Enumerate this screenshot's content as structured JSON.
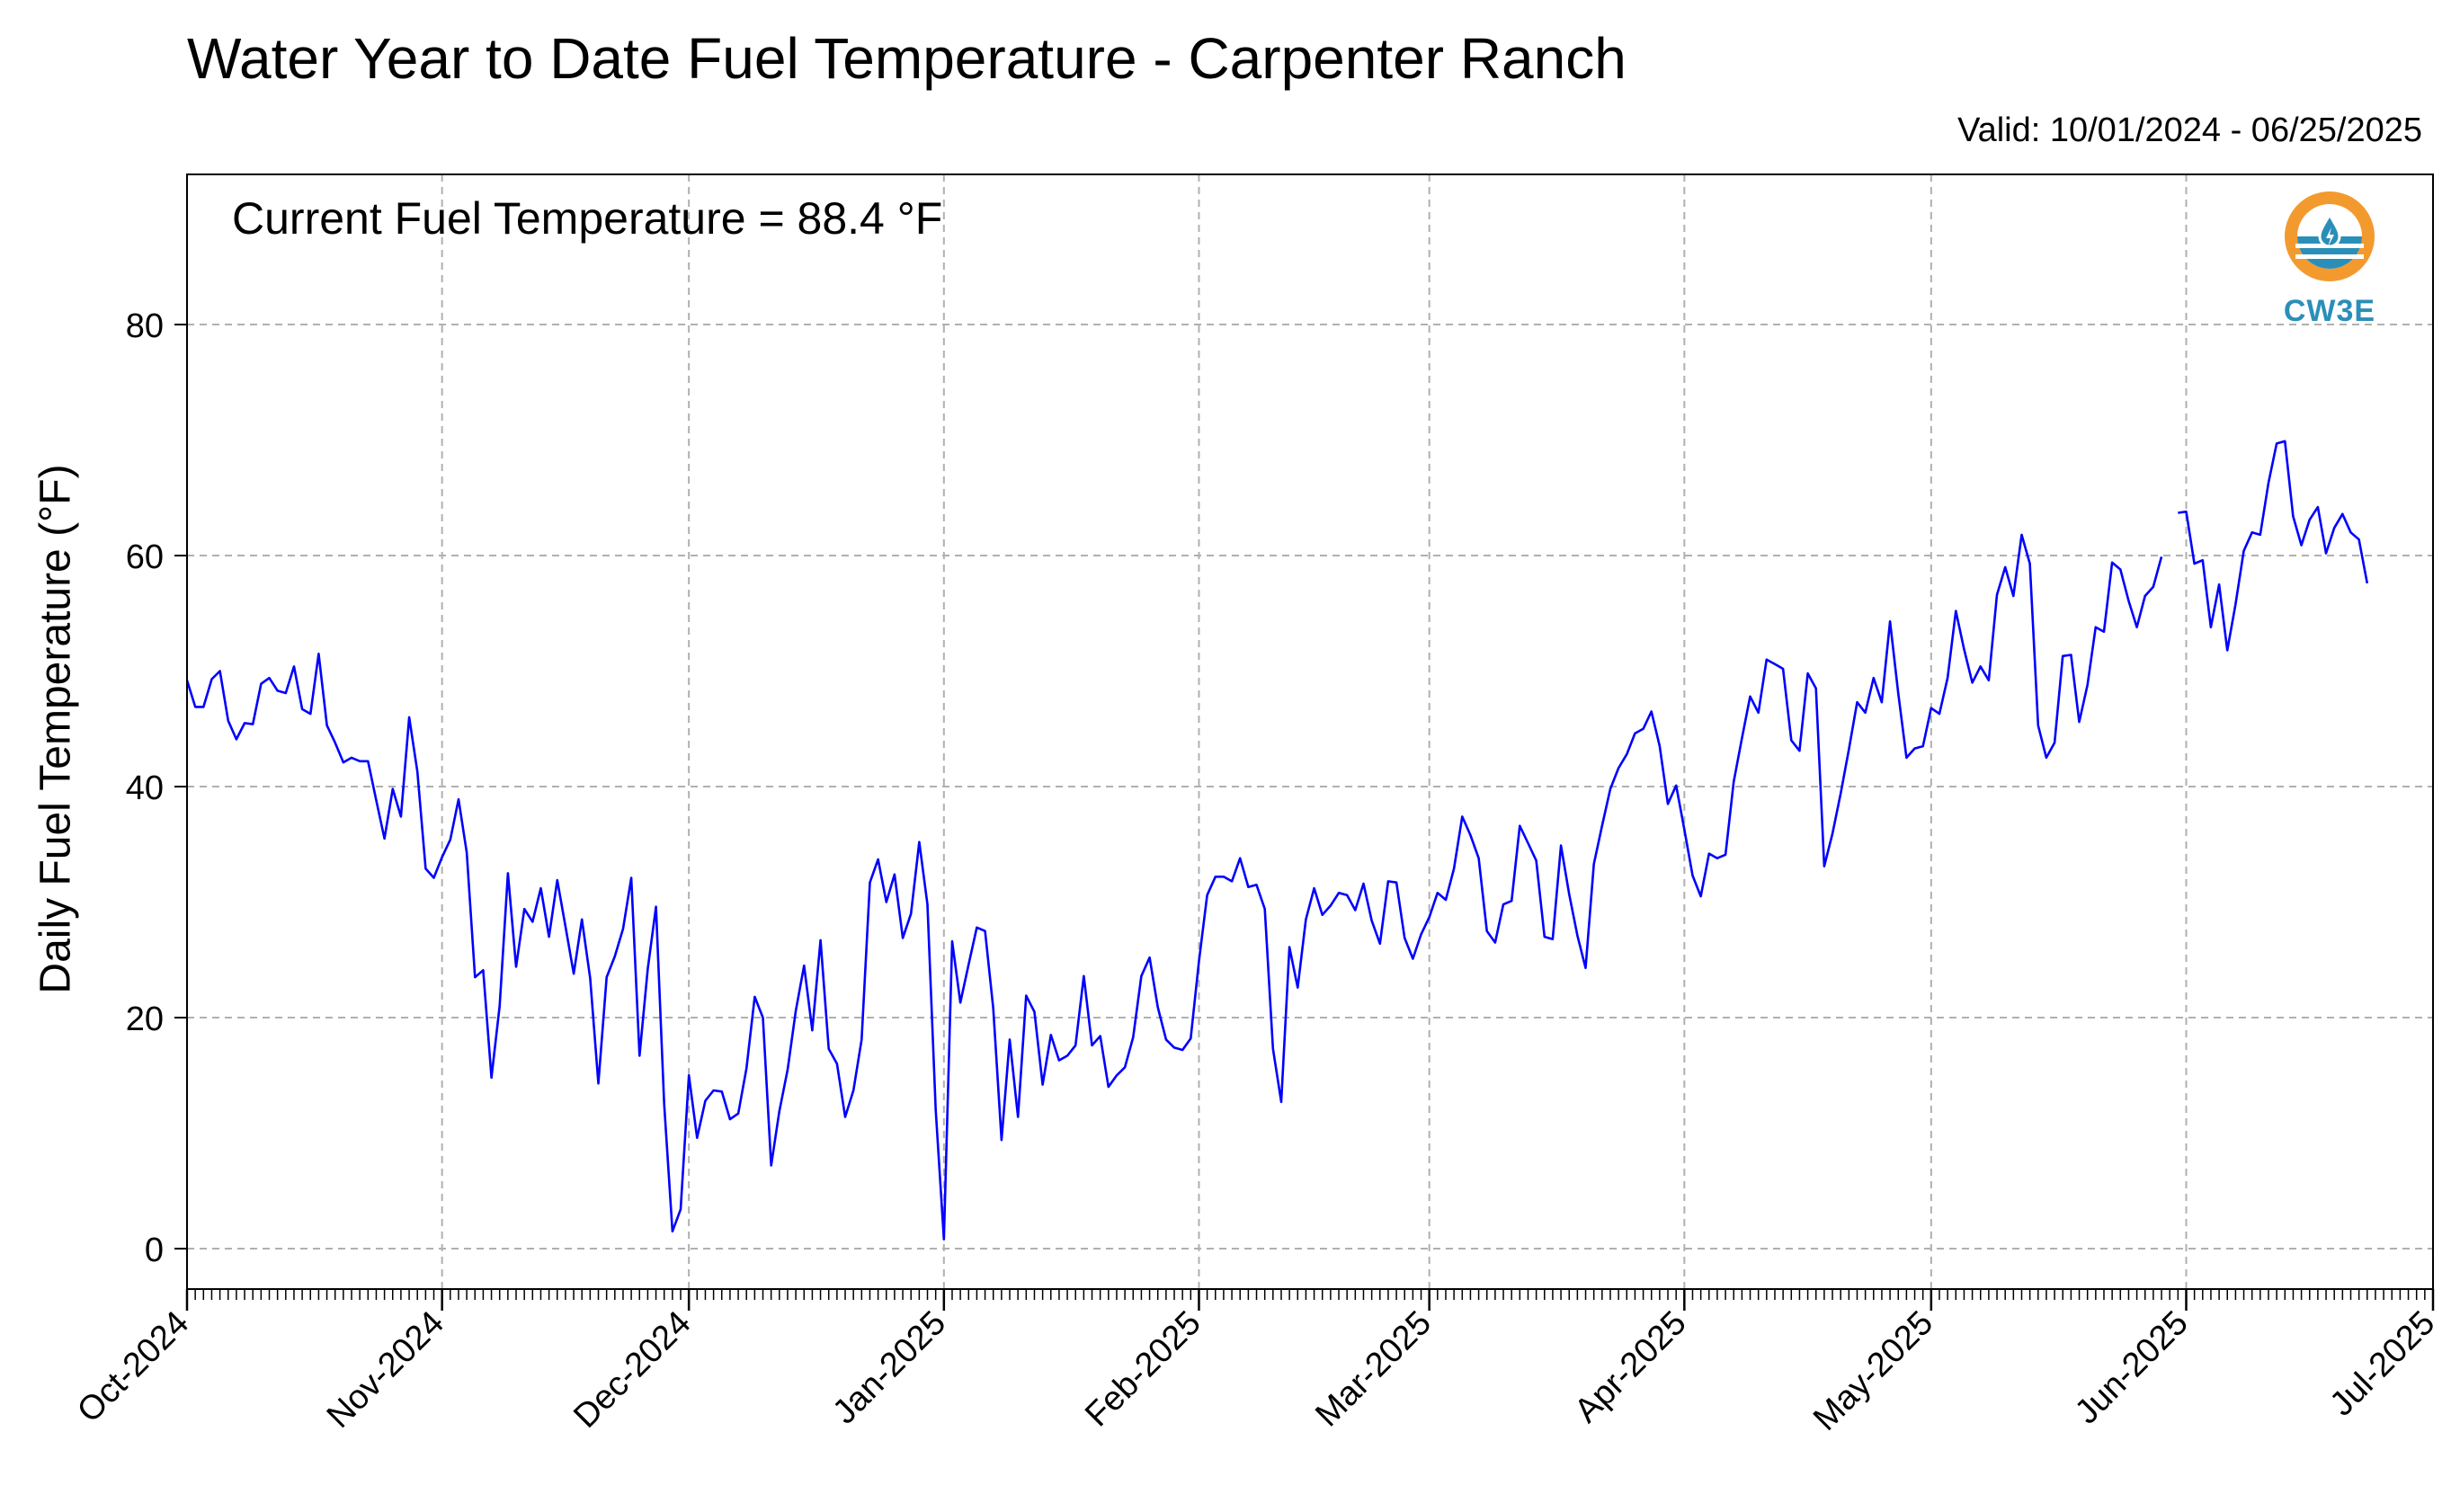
{
  "title": "Water Year to Date Fuel Temperature - Carpenter Ranch",
  "subtitle": "Valid: 10/01/2024 - 06/25/2025",
  "annotation": "Current Fuel Temperature = 88.4 $^\\circ$F",
  "logo": {
    "text": "CW3E",
    "icon": "cw3e-logo-icon",
    "colors": {
      "orange": "#f39a2e",
      "blue": "#2a8fb8"
    }
  },
  "chart_data": {
    "type": "line",
    "title": "Water Year to Date Fuel Temperature - Carpenter Ranch",
    "xlabel": "",
    "ylabel": "Daily Fuel Temperature ($^\\circ$F)",
    "xlim": [
      "2024-10-01",
      "2025-07-01"
    ],
    "ylim": [
      -3.5,
      93
    ],
    "yticks": [
      0,
      20,
      40,
      60,
      80
    ],
    "ytick_labels": [
      "0",
      "20",
      "40",
      "60",
      "80"
    ],
    "xticks": [
      "2024-10-01",
      "2024-11-01",
      "2024-12-01",
      "2025-01-01",
      "2025-02-01",
      "2025-03-01",
      "2025-04-01",
      "2025-05-01",
      "2025-06-01",
      "2025-07-01"
    ],
    "xtick_labels": [
      "Oct-2024",
      "Nov-2024",
      "Dec-2024",
      "Jan-2025",
      "Feb-2025",
      "Mar-2025",
      "Apr-2025",
      "May-2025",
      "Jun-2025",
      "Jul-2025"
    ],
    "grid": true,
    "line_color": "#0000ff",
    "start_date": "2024-10-01",
    "series": [
      {
        "segments": [
          {
            "start": "2024-10-01",
            "values": [
              49.2,
              46.9,
              46.9,
              49.3,
              50.0,
              45.7,
              44.1,
              45.5,
              45.4,
              48.9,
              49.4,
              48.3,
              48.1,
              50.4,
              46.7,
              46.3,
              51.5,
              45.3,
              43.8,
              42.1,
              42.5,
              42.2,
              42.2,
              38.8,
              35.5,
              39.8,
              37.4,
              46.0,
              41.3,
              32.9,
              32.1,
              33.9,
              35.4,
              38.9,
              34.3,
              23.5,
              24.1,
              14.8,
              21.0,
              32.5,
              24.4,
              29.4,
              28.3,
              31.2,
              27.0,
              31.9,
              27.9,
              23.8,
              28.5,
              23.4,
              14.3,
              23.5,
              25.3,
              27.7,
              32.1,
              16.7,
              24.2,
              29.6,
              12.5,
              1.5,
              3.4,
              15.0,
              9.6,
              12.8,
              13.7,
              13.6,
              11.2,
              11.7,
              15.6,
              21.8,
              20.0,
              7.2,
              11.9,
              15.5,
              20.6,
              24.5,
              18.9,
              26.7,
              17.3,
              16.0,
              11.4,
              13.7,
              18.1,
              31.7,
              33.7,
              30.0,
              32.4,
              26.9,
              29.0,
              35.2,
              29.8,
              12.0,
              0.8,
              26.6,
              21.3,
              24.6,
              27.8,
              27.5,
              20.8,
              9.4,
              18.1,
              11.4,
              21.9,
              20.5,
              14.2,
              18.5,
              16.3,
              16.7,
              17.6,
              23.6,
              17.6,
              18.4,
              14.0,
              15.0,
              15.7,
              18.3,
              23.6,
              25.2,
              20.9,
              18.1,
              17.4,
              17.2,
              18.2,
              24.9,
              30.6,
              32.2,
              32.2,
              31.8,
              33.8,
              31.3,
              31.5,
              29.4,
              17.3,
              12.7,
              26.1,
              22.6,
              28.5,
              31.2,
              28.9,
              29.7,
              30.8,
              30.6,
              29.3,
              31.6,
              28.4,
              26.4,
              31.8,
              31.7,
              26.9,
              25.1,
              27.2,
              28.7,
              30.8,
              30.2,
              32.9,
              37.4,
              35.8,
              33.8,
              27.5,
              26.5,
              29.8,
              30.1,
              36.6,
              35.1,
              33.6,
              27.0,
              26.8,
              34.9,
              30.7,
              27.1,
              24.3,
              33.3,
              36.6,
              39.8,
              41.6,
              42.8,
              44.6,
              45.0,
              46.5,
              43.5,
              38.5,
              40.1,
              36.3,
              32.3,
              30.5,
              34.2,
              33.8,
              34.1,
              40.4,
              44.2,
              47.8,
              46.4,
              51.0,
              50.6,
              50.2,
              44.0,
              43.1,
              49.8,
              48.5,
              33.1,
              35.9,
              39.4,
              43.2,
              47.3,
              46.4,
              49.4,
              47.3,
              54.3,
              48.1,
              42.5,
              43.3,
              43.5,
              46.8,
              46.3,
              49.4,
              55.2,
              51.9,
              49.0,
              50.4,
              49.2,
              56.6,
              59.0,
              56.5,
              61.8,
              59.3,
              45.3,
              42.5,
              43.8,
              51.3,
              51.4,
              45.6,
              48.8,
              53.8,
              53.4,
              59.4,
              58.8,
              56.1,
              53.8,
              56.5,
              57.3,
              59.9
            ]
          },
          {
            "start": "2025-05-31",
            "values": [
              63.7,
              63.8,
              59.3,
              59.6,
              53.8,
              57.5,
              51.8,
              55.8,
              60.4,
              62.0,
              61.8,
              66.3,
              69.7,
              69.9,
              63.4,
              60.9,
              63.1,
              64.2,
              60.2,
              62.4,
              63.6,
              62.0,
              61.4,
              57.6
            ]
          }
        ]
      }
    ]
  }
}
